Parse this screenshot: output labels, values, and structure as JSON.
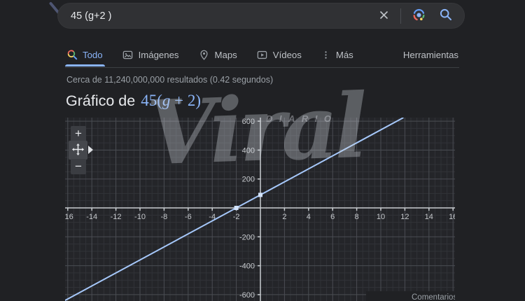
{
  "search": {
    "query": "45 (g+2 )",
    "clear_icon": "close-icon",
    "lens_icon": "google-lens-icon",
    "submit_icon": "search-icon"
  },
  "tabs": {
    "items": [
      {
        "label": "Todo",
        "icon": "search-icon",
        "active": true
      },
      {
        "label": "Imágenes",
        "icon": "image-icon",
        "active": false
      },
      {
        "label": "Maps",
        "icon": "map-pin-icon",
        "active": false
      },
      {
        "label": "Vídeos",
        "icon": "video-icon",
        "active": false
      },
      {
        "label": "Más",
        "icon": "more-vertical-icon",
        "active": false
      }
    ],
    "tools_label": "Herramientas"
  },
  "stats": {
    "text": "Cerca de 11,240,000,000 resultados (0.42 segundos)"
  },
  "heading": {
    "prefix": "Gráfico de",
    "expr_pre": "45(",
    "expr_var": "g",
    "expr_post": " + 2)"
  },
  "watermark": {
    "title": "Viral",
    "subtitle": "DIARIO"
  },
  "graph_controls": {
    "zoom_in_label": "+",
    "zoom_out_label": "−",
    "pan_icon": "move-icon",
    "expand_icon": "triangle-right-icon"
  },
  "feedback": {
    "label": "Comentarios"
  },
  "colors": {
    "accent": "#8ab4f8",
    "page_bg": "#202124",
    "plot_bg": "#242529",
    "text": "#e8eaed",
    "muted": "#9aa0a6"
  },
  "chart_data": {
    "type": "line",
    "title": "45(g + 2)",
    "equation": {
      "text": "y = 45(g + 2)",
      "slope": 45,
      "intercept": 90,
      "variable": "g"
    },
    "xlim": [
      -16.3,
      16.3
    ],
    "ylim": [
      -644,
      625
    ],
    "x_ticks": [
      -16,
      -14,
      -12,
      -10,
      -8,
      -6,
      -4,
      -2,
      2,
      4,
      6,
      8,
      10,
      12,
      14,
      16
    ],
    "y_ticks": [
      600,
      400,
      200,
      -200,
      -400,
      -600
    ],
    "x_major_step": 2,
    "x_minor_step": 0.5,
    "y_major_step": 200,
    "y_minor_step": 50,
    "grid": true,
    "highlight_points": [
      [
        -2,
        0
      ],
      [
        0,
        90
      ]
    ],
    "line_color": "#a6c8fa",
    "marker_color": "#d2e3fc",
    "axis_color": "#c9cdd1",
    "grid_minor_color": "#313338",
    "grid_major_color": "#4a4d53",
    "label_color": "#c5c8cc"
  }
}
